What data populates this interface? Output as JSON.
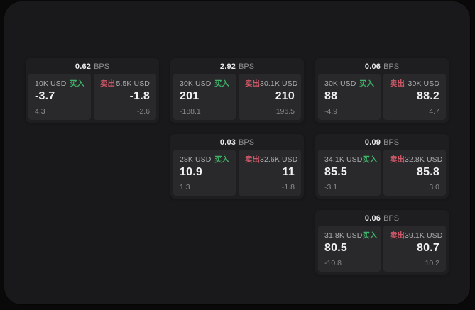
{
  "labels": {
    "bps": "BPS",
    "buy": "买入",
    "sell": "卖出"
  },
  "colors": {
    "buy": "#3fb168",
    "sell": "#cf5868",
    "surface": "#19191b",
    "card": "#1e1e20",
    "tile": "#29292b"
  },
  "cards": [
    {
      "bps": "0.62",
      "buy": {
        "amount": "10K USD",
        "value": "-3.7",
        "sub": "4.3"
      },
      "sell": {
        "amount": "5.5K USD",
        "value": "-1.8",
        "sub": "-2.6"
      }
    },
    {
      "bps": "2.92",
      "buy": {
        "amount": "30K USD",
        "value": "201",
        "sub": "-188.1"
      },
      "sell": {
        "amount": "30.1K USD",
        "value": "210",
        "sub": "196.5"
      }
    },
    {
      "bps": "0.06",
      "buy": {
        "amount": "30K USD",
        "value": "88",
        "sub": "-4.9"
      },
      "sell": {
        "amount": "30K USD",
        "value": "88.2",
        "sub": "4.7"
      }
    },
    {
      "bps": "0.03",
      "buy": {
        "amount": "28K USD",
        "value": "10.9",
        "sub": "1.3"
      },
      "sell": {
        "amount": "32.6K USD",
        "value": "11",
        "sub": "-1.8"
      }
    },
    {
      "bps": "0.09",
      "buy": {
        "amount": "34.1K USD",
        "value": "85.5",
        "sub": "-3.1"
      },
      "sell": {
        "amount": "32.8K USD",
        "value": "85.8",
        "sub": "3.0"
      }
    },
    {
      "bps": "0.06",
      "buy": {
        "amount": "31.8K USD",
        "value": "80.5",
        "sub": "-10.8"
      },
      "sell": {
        "amount": "39.1K USD",
        "value": "80.7",
        "sub": "10.2"
      }
    }
  ]
}
